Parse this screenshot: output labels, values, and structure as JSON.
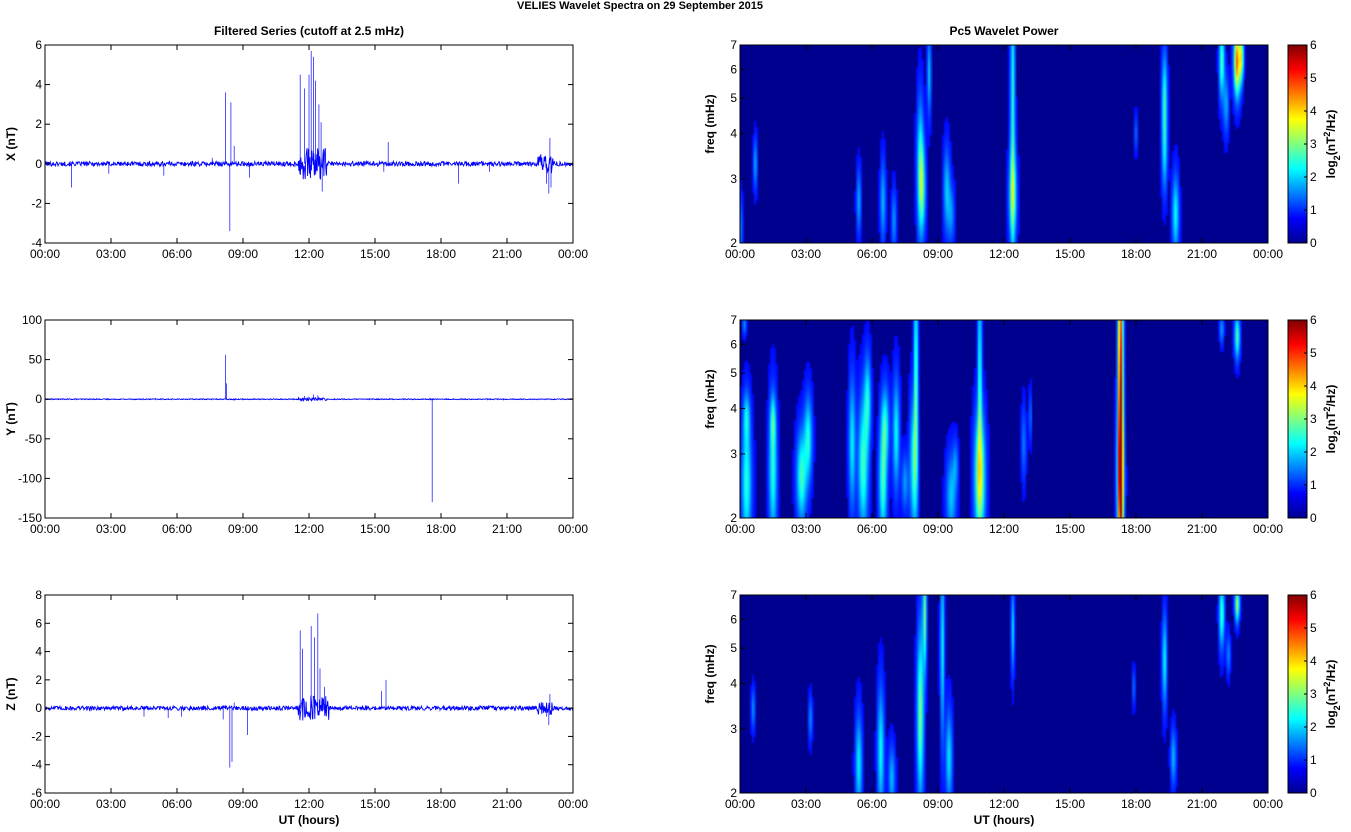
{
  "figure_title": "VELIES Wavelet Spectra on 29 September 2015",
  "colors": {
    "line": "#0000ff",
    "frame": "#000000",
    "background": "#ffffff",
    "spec_background": "#00008f"
  },
  "chart_data": [
    {
      "type": "line",
      "title": "Filtered Series (cutoff at 2.5 mHz)",
      "ylabel": "X (nT)",
      "xlabel": "",
      "xlim": [
        0,
        24
      ],
      "ylim": [
        -4,
        6
      ],
      "yticks": [
        "-4",
        "-2",
        "0",
        "2",
        "4",
        "6"
      ],
      "xticks": [
        "00:00",
        "03:00",
        "06:00",
        "09:00",
        "12:00",
        "15:00",
        "18:00",
        "21:00",
        "00:00"
      ],
      "baseline_noise": 0.12,
      "spikes": [
        [
          1.2,
          -1.2
        ],
        [
          2.9,
          -0.5
        ],
        [
          5.4,
          -0.6
        ],
        [
          7.6,
          0.3
        ],
        [
          8.2,
          3.6
        ],
        [
          8.4,
          -3.4
        ],
        [
          8.45,
          3.1
        ],
        [
          8.6,
          0.9
        ],
        [
          9.3,
          -0.7
        ],
        [
          11.6,
          4.5
        ],
        [
          11.8,
          3.8
        ],
        [
          12.0,
          4.5
        ],
        [
          12.1,
          5.7
        ],
        [
          12.2,
          5.4
        ],
        [
          12.3,
          4.2
        ],
        [
          12.45,
          3.0
        ],
        [
          12.55,
          2.1
        ],
        [
          12.6,
          -1.4
        ],
        [
          12.8,
          -0.6
        ],
        [
          15.6,
          1.1
        ],
        [
          15.4,
          -0.4
        ],
        [
          18.8,
          -1.0
        ],
        [
          20.2,
          -0.4
        ],
        [
          22.8,
          -1.0
        ],
        [
          22.9,
          -1.5
        ],
        [
          22.95,
          1.3
        ],
        [
          23.0,
          -1.2
        ]
      ],
      "burst_noise": [
        [
          11.5,
          12.8,
          0.8
        ],
        [
          22.4,
          23.1,
          0.5
        ]
      ]
    },
    {
      "type": "line",
      "title": "",
      "ylabel": "Y (nT)",
      "xlabel": "",
      "xlim": [
        0,
        24
      ],
      "ylim": [
        -150,
        100
      ],
      "yticks": [
        "-150",
        "-100",
        "-50",
        "0",
        "50",
        "100"
      ],
      "xticks": [
        "00:00",
        "03:00",
        "06:00",
        "09:00",
        "12:00",
        "15:00",
        "18:00",
        "21:00",
        "00:00"
      ],
      "baseline_noise": 0.6,
      "spikes": [
        [
          8.2,
          56
        ],
        [
          8.25,
          20
        ],
        [
          8.6,
          -2
        ],
        [
          11.8,
          4
        ],
        [
          12.2,
          6
        ],
        [
          12.4,
          5
        ],
        [
          17.6,
          -130
        ]
      ],
      "burst_noise": [
        [
          11.5,
          12.8,
          2
        ]
      ]
    },
    {
      "type": "line",
      "title": "",
      "ylabel": "Z (nT)",
      "xlabel": "UT (hours)",
      "xlim": [
        0,
        24
      ],
      "ylim": [
        -6,
        8
      ],
      "yticks": [
        "-6",
        "-4",
        "-2",
        "0",
        "2",
        "4",
        "6",
        "8"
      ],
      "xticks": [
        "00:00",
        "03:00",
        "06:00",
        "09:00",
        "12:00",
        "15:00",
        "18:00",
        "21:00",
        "00:00"
      ],
      "baseline_noise": 0.15,
      "spikes": [
        [
          4.5,
          -0.6
        ],
        [
          5.6,
          -0.7
        ],
        [
          6.2,
          -0.6
        ],
        [
          8.1,
          -0.8
        ],
        [
          8.4,
          -4.2
        ],
        [
          8.5,
          -3.8
        ],
        [
          8.6,
          0.4
        ],
        [
          9.2,
          -1.9
        ],
        [
          11.6,
          5.5
        ],
        [
          11.7,
          4.2
        ],
        [
          12.1,
          5.8
        ],
        [
          12.25,
          5.0
        ],
        [
          12.4,
          6.7
        ],
        [
          12.5,
          2.8
        ],
        [
          12.7,
          1.5
        ],
        [
          15.3,
          1.2
        ],
        [
          15.5,
          2.0
        ],
        [
          22.8,
          -0.6
        ],
        [
          22.9,
          -1.2
        ],
        [
          22.95,
          1.0
        ]
      ],
      "burst_noise": [
        [
          11.5,
          12.9,
          0.9
        ],
        [
          22.4,
          23.1,
          0.5
        ]
      ]
    },
    {
      "type": "heatmap",
      "title": "Pc5 Wavelet Power",
      "ylabel": "freq (mHz)",
      "xlabel": "",
      "colorbar_label": "log2(nT^2/Hz)",
      "colorbar_ticks": [
        "0",
        "1",
        "2",
        "3",
        "4",
        "5",
        "6"
      ],
      "clim": [
        0,
        6
      ],
      "xlim": [
        0,
        24
      ],
      "ylim": [
        2,
        7
      ],
      "y_scale": "log",
      "yticks": [
        "2",
        "3",
        "4",
        "5",
        "6",
        "7"
      ],
      "xticks": [
        "00:00",
        "03:00",
        "06:00",
        "09:00",
        "12:00",
        "15:00",
        "18:00",
        "21:00",
        "00:00"
      ],
      "blobs": [
        [
          0.7,
          3.3,
          0.06,
          0.35,
          1.2
        ],
        [
          0.0,
          2.2,
          0.08,
          0.3,
          1.0
        ],
        [
          5.4,
          2.6,
          0.07,
          0.35,
          1.2
        ],
        [
          6.5,
          2.6,
          0.08,
          0.45,
          1.3
        ],
        [
          7.0,
          2.3,
          0.07,
          0.3,
          1.1
        ],
        [
          8.2,
          3.2,
          0.1,
          0.9,
          2.2
        ],
        [
          8.3,
          2.8,
          0.1,
          0.5,
          1.6
        ],
        [
          8.6,
          5.8,
          0.06,
          1.0,
          1.4
        ],
        [
          9.4,
          2.8,
          0.1,
          0.5,
          1.4
        ],
        [
          9.6,
          2.4,
          0.1,
          0.3,
          1.0
        ],
        [
          12.4,
          4.5,
          0.07,
          3.0,
          2.0
        ],
        [
          12.4,
          2.7,
          0.12,
          0.5,
          2.0
        ],
        [
          18.0,
          4.0,
          0.05,
          0.3,
          0.8
        ],
        [
          19.3,
          5.0,
          0.08,
          1.0,
          2.0
        ],
        [
          19.3,
          3.5,
          0.08,
          0.6,
          1.4
        ],
        [
          19.8,
          2.4,
          0.1,
          0.4,
          1.8
        ],
        [
          21.9,
          6.3,
          0.08,
          1.0,
          2.3
        ],
        [
          22.1,
          4.8,
          0.08,
          0.6,
          1.2
        ],
        [
          22.6,
          6.3,
          0.1,
          0.9,
          4.6
        ],
        [
          22.8,
          6.5,
          0.06,
          0.7,
          3.0
        ]
      ]
    },
    {
      "type": "heatmap",
      "title": "",
      "ylabel": "freq (mHz)",
      "xlabel": "",
      "colorbar_label": "log2(nT^2/Hz)",
      "colorbar_ticks": [
        "0",
        "1",
        "2",
        "3",
        "4",
        "5",
        "6"
      ],
      "clim": [
        0,
        6
      ],
      "xlim": [
        0,
        24
      ],
      "ylim": [
        2,
        7
      ],
      "y_scale": "log",
      "yticks": [
        "2",
        "3",
        "4",
        "5",
        "6",
        "7"
      ],
      "xticks": [
        "00:00",
        "03:00",
        "06:00",
        "09:00",
        "12:00",
        "15:00",
        "18:00",
        "21:00",
        "00:00"
      ],
      "blobs": [
        [
          0.3,
          2.5,
          0.15,
          0.7,
          2.0
        ],
        [
          0.3,
          3.8,
          0.1,
          0.4,
          1.3
        ],
        [
          0.2,
          6.8,
          0.06,
          0.3,
          1.0
        ],
        [
          1.5,
          2.7,
          0.12,
          0.8,
          2.0
        ],
        [
          1.5,
          3.7,
          0.08,
          0.4,
          1.4
        ],
        [
          2.8,
          2.6,
          0.15,
          0.5,
          2.2
        ],
        [
          3.1,
          3.3,
          0.12,
          0.6,
          1.9
        ],
        [
          5.1,
          3.2,
          0.1,
          0.9,
          1.7
        ],
        [
          5.6,
          2.8,
          0.15,
          0.8,
          2.2
        ],
        [
          5.8,
          4.2,
          0.1,
          0.8,
          1.8
        ],
        [
          6.5,
          2.5,
          0.12,
          0.6,
          2.2
        ],
        [
          6.6,
          3.6,
          0.12,
          0.6,
          1.8
        ],
        [
          7.1,
          3.4,
          0.1,
          0.8,
          1.8
        ],
        [
          7.5,
          2.5,
          0.1,
          0.3,
          1.1
        ],
        [
          7.9,
          2.8,
          0.12,
          0.8,
          2.0
        ],
        [
          8.0,
          5.0,
          0.06,
          2.5,
          2.3
        ],
        [
          9.6,
          2.3,
          0.15,
          0.4,
          1.4
        ],
        [
          9.8,
          2.8,
          0.08,
          0.3,
          0.9
        ],
        [
          10.9,
          2.6,
          0.16,
          0.7,
          3.2
        ],
        [
          10.9,
          5.0,
          0.06,
          2.5,
          2.0
        ],
        [
          12.9,
          3.2,
          0.07,
          0.5,
          0.9
        ],
        [
          13.2,
          3.8,
          0.05,
          0.4,
          0.8
        ],
        [
          17.3,
          4.5,
          0.08,
          3.5,
          5.6
        ],
        [
          17.3,
          2.5,
          0.1,
          0.8,
          3.2
        ],
        [
          21.9,
          6.6,
          0.06,
          0.4,
          1.2
        ],
        [
          22.6,
          6.3,
          0.08,
          0.6,
          2.3
        ]
      ]
    },
    {
      "type": "heatmap",
      "title": "",
      "ylabel": "freq (mHz)",
      "xlabel": "UT (hours)",
      "colorbar_label": "log2(nT^2/Hz)",
      "colorbar_ticks": [
        "0",
        "1",
        "2",
        "3",
        "4",
        "5",
        "6"
      ],
      "clim": [
        0,
        6
      ],
      "xlim": [
        0,
        24
      ],
      "ylim": [
        2,
        7
      ],
      "y_scale": "log",
      "yticks": [
        "2",
        "3",
        "4",
        "5",
        "6",
        "7"
      ],
      "xticks": [
        "00:00",
        "03:00",
        "06:00",
        "09:00",
        "12:00",
        "15:00",
        "18:00",
        "21:00",
        "00:00"
      ],
      "blobs": [
        [
          0.6,
          3.4,
          0.06,
          0.3,
          1.0
        ],
        [
          3.2,
          3.2,
          0.06,
          0.3,
          1.0
        ],
        [
          5.4,
          2.4,
          0.1,
          0.5,
          1.7
        ],
        [
          6.4,
          2.6,
          0.1,
          0.7,
          1.8
        ],
        [
          6.9,
          2.2,
          0.1,
          0.3,
          1.3
        ],
        [
          8.2,
          3.3,
          0.1,
          1.2,
          2.6
        ],
        [
          8.4,
          6.2,
          0.06,
          1.5,
          2.5
        ],
        [
          9.2,
          5.0,
          0.06,
          2.0,
          1.8
        ],
        [
          9.5,
          2.5,
          0.1,
          0.5,
          1.6
        ],
        [
          12.4,
          5.6,
          0.05,
          1.0,
          1.6
        ],
        [
          17.9,
          3.9,
          0.05,
          0.3,
          0.8
        ],
        [
          19.3,
          4.6,
          0.07,
          0.9,
          1.8
        ],
        [
          19.7,
          2.5,
          0.08,
          0.3,
          1.3
        ],
        [
          21.9,
          6.2,
          0.08,
          0.9,
          2.2
        ],
        [
          22.2,
          4.8,
          0.06,
          0.4,
          1.0
        ],
        [
          22.6,
          6.6,
          0.07,
          0.5,
          3.0
        ]
      ]
    }
  ]
}
